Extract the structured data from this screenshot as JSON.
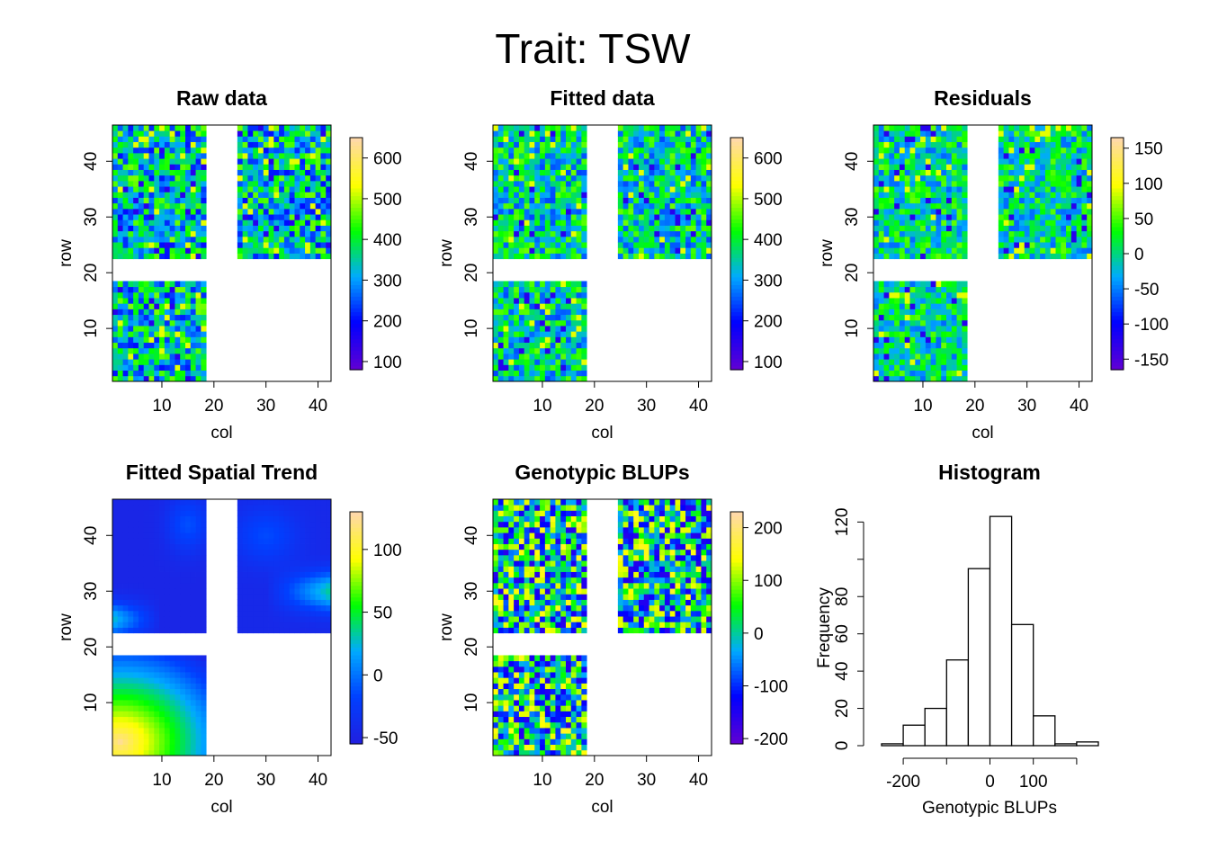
{
  "main_title": "Trait: TSW",
  "colors": {
    "ramp": [
      "#5e00d4",
      "#0000ff",
      "#00aaff",
      "#00ff00",
      "#ffff00",
      "#ffd9a8"
    ],
    "spatial_ramp": [
      "#2020e0",
      "#0040ff",
      "#00aaff",
      "#00ff00",
      "#ffff00",
      "#ffd9a8"
    ]
  },
  "chart_data": [
    {
      "type": "heatmap",
      "title": "Raw data",
      "xlabel": "col",
      "ylabel": "row",
      "x_ticks": [
        "10",
        "20",
        "30",
        "40"
      ],
      "y_ticks": [
        "10",
        "20",
        "30",
        "40"
      ],
      "colorbar_ticks": [
        "100",
        "200",
        "300",
        "400",
        "500",
        "600"
      ],
      "colorbar_range": [
        80,
        650
      ],
      "field": {
        "cols": 42,
        "rows": 46
      },
      "blocks": [
        {
          "cols": [
            1,
            18
          ],
          "rows": [
            23,
            46
          ]
        },
        {
          "cols": [
            25,
            42
          ],
          "rows": [
            23,
            46
          ]
        },
        {
          "cols": [
            1,
            18
          ],
          "rows": [
            1,
            18
          ]
        }
      ],
      "typical_range": [
        200,
        480
      ]
    },
    {
      "type": "heatmap",
      "title": "Fitted data",
      "xlabel": "col",
      "ylabel": "row",
      "x_ticks": [
        "10",
        "20",
        "30",
        "40"
      ],
      "y_ticks": [
        "10",
        "20",
        "30",
        "40"
      ],
      "colorbar_ticks": [
        "100",
        "200",
        "300",
        "400",
        "500",
        "600"
      ],
      "colorbar_range": [
        80,
        650
      ],
      "field": {
        "cols": 42,
        "rows": 46
      },
      "blocks": [
        {
          "cols": [
            1,
            18
          ],
          "rows": [
            23,
            46
          ]
        },
        {
          "cols": [
            25,
            42
          ],
          "rows": [
            23,
            46
          ]
        },
        {
          "cols": [
            1,
            18
          ],
          "rows": [
            1,
            18
          ]
        }
      ],
      "typical_range": [
        240,
        470
      ]
    },
    {
      "type": "heatmap",
      "title": "Residuals",
      "xlabel": "col",
      "ylabel": "row",
      "x_ticks": [
        "10",
        "20",
        "30",
        "40"
      ],
      "y_ticks": [
        "10",
        "20",
        "30",
        "40"
      ],
      "colorbar_ticks": [
        "150",
        "100",
        "50",
        "0",
        "-50",
        "-100",
        "-150"
      ],
      "colorbar_range": [
        -165,
        165
      ],
      "field": {
        "cols": 42,
        "rows": 46
      },
      "blocks": [
        {
          "cols": [
            1,
            18
          ],
          "rows": [
            23,
            46
          ]
        },
        {
          "cols": [
            25,
            42
          ],
          "rows": [
            23,
            46
          ]
        },
        {
          "cols": [
            1,
            18
          ],
          "rows": [
            1,
            18
          ]
        }
      ],
      "typical_range": [
        -60,
        60
      ]
    },
    {
      "type": "heatmap",
      "title": "Fitted Spatial Trend",
      "xlabel": "col",
      "ylabel": "row",
      "x_ticks": [
        "10",
        "20",
        "30",
        "40"
      ],
      "y_ticks": [
        "10",
        "20",
        "30",
        "40"
      ],
      "colorbar_ticks": [
        "100",
        "50",
        "0",
        "-50"
      ],
      "colorbar_range": [
        -55,
        130
      ],
      "field": {
        "cols": 42,
        "rows": 46
      },
      "blocks": [
        {
          "cols": [
            1,
            18
          ],
          "rows": [
            23,
            46
          ]
        },
        {
          "cols": [
            25,
            42
          ],
          "rows": [
            23,
            46
          ]
        },
        {
          "cols": [
            1,
            18
          ],
          "rows": [
            1,
            18
          ]
        }
      ],
      "smooth": true
    },
    {
      "type": "heatmap",
      "title": "Genotypic BLUPs",
      "xlabel": "col",
      "ylabel": "row",
      "x_ticks": [
        "10",
        "20",
        "30",
        "40"
      ],
      "y_ticks": [
        "10",
        "20",
        "30",
        "40"
      ],
      "colorbar_ticks": [
        "200",
        "100",
        "0",
        "-100",
        "-200"
      ],
      "colorbar_range": [
        -210,
        230
      ],
      "field": {
        "cols": 42,
        "rows": 46
      },
      "blocks": [
        {
          "cols": [
            1,
            18
          ],
          "rows": [
            23,
            46
          ]
        },
        {
          "cols": [
            25,
            42
          ],
          "rows": [
            23,
            46
          ]
        },
        {
          "cols": [
            1,
            18
          ],
          "rows": [
            1,
            18
          ]
        }
      ],
      "typical_range": [
        -160,
        160
      ]
    },
    {
      "type": "bar",
      "title": "Histogram",
      "xlabel": "Genotypic BLUPs",
      "ylabel": "Frequency",
      "x_ticks": [
        "-200",
        "0",
        "100"
      ],
      "y_ticks": [
        "0",
        "20",
        "40",
        "60",
        "80",
        "120"
      ],
      "bin_edges": [
        -250,
        -200,
        -150,
        -100,
        -50,
        0,
        50,
        100,
        150,
        200,
        250
      ],
      "values": [
        1,
        11,
        20,
        46,
        95,
        123,
        65,
        16,
        1,
        2
      ],
      "xlim": [
        -250,
        250
      ],
      "ylim": [
        0,
        125
      ]
    }
  ]
}
